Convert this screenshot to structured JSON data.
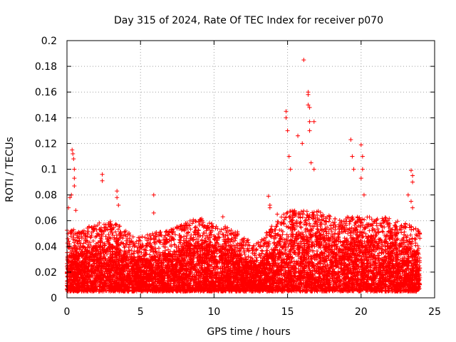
{
  "chart_data": {
    "type": "scatter",
    "title": "Day 315 of 2024, Rate Of TEC Index for receiver p070",
    "xlabel": "GPS time / hours",
    "ylabel": "ROTI / TECUs",
    "xlim": [
      0,
      25
    ],
    "ylim": [
      0,
      0.2
    ],
    "x_ticks": [
      0,
      5,
      10,
      15,
      20,
      25
    ],
    "x_tick_labels": [
      "0",
      "5",
      "10",
      "15",
      "20",
      "25"
    ],
    "y_ticks": [
      0,
      0.02,
      0.04,
      0.06,
      0.08,
      0.1,
      0.12,
      0.14,
      0.16,
      0.18,
      0.2
    ],
    "y_tick_labels": [
      "0",
      "0.02",
      "0.04",
      "0.06",
      "0.08",
      "0.1",
      "0.12",
      "0.14",
      "0.16",
      "0.18",
      "0.2"
    ],
    "grid": true,
    "marker": "plus",
    "series": [
      {
        "name": "ROTI",
        "color": "#ff0000",
        "x_range": [
          0,
          24
        ],
        "dense_band_upper": [
          [
            0,
            0.035
          ],
          [
            1,
            0.035
          ],
          [
            2,
            0.04
          ],
          [
            3,
            0.042
          ],
          [
            4,
            0.035
          ],
          [
            5,
            0.03
          ],
          [
            6,
            0.033
          ],
          [
            7,
            0.035
          ],
          [
            8,
            0.04
          ],
          [
            9,
            0.045
          ],
          [
            10,
            0.04
          ],
          [
            11,
            0.038
          ],
          [
            12,
            0.03
          ],
          [
            13,
            0.025
          ],
          [
            14,
            0.04
          ],
          [
            15,
            0.05
          ],
          [
            16,
            0.05
          ],
          [
            17,
            0.05
          ],
          [
            18,
            0.045
          ],
          [
            19,
            0.045
          ],
          [
            20,
            0.045
          ],
          [
            21,
            0.045
          ],
          [
            22,
            0.045
          ],
          [
            23,
            0.04
          ],
          [
            24,
            0.035
          ]
        ],
        "notable_points": [
          [
            0.1,
            0.07
          ],
          [
            0.2,
            0.078
          ],
          [
            0.3,
            0.08
          ],
          [
            0.35,
            0.115
          ],
          [
            0.4,
            0.112
          ],
          [
            0.45,
            0.108
          ],
          [
            0.5,
            0.1
          ],
          [
            0.5,
            0.093
          ],
          [
            0.5,
            0.087
          ],
          [
            0.6,
            0.068
          ],
          [
            2.4,
            0.096
          ],
          [
            2.4,
            0.091
          ],
          [
            3.4,
            0.083
          ],
          [
            3.4,
            0.078
          ],
          [
            3.5,
            0.072
          ],
          [
            5.9,
            0.08
          ],
          [
            5.9,
            0.066
          ],
          [
            10.6,
            0.063
          ],
          [
            14.9,
            0.145
          ],
          [
            14.9,
            0.14
          ],
          [
            15.0,
            0.13
          ],
          [
            15.1,
            0.11
          ],
          [
            15.2,
            0.1
          ],
          [
            16.1,
            0.185
          ],
          [
            16.4,
            0.16
          ],
          [
            16.4,
            0.158
          ],
          [
            16.4,
            0.15
          ],
          [
            16.5,
            0.148
          ],
          [
            16.5,
            0.137
          ],
          [
            16.5,
            0.13
          ],
          [
            16.8,
            0.137
          ],
          [
            15.7,
            0.126
          ],
          [
            16.0,
            0.12
          ],
          [
            16.6,
            0.105
          ],
          [
            16.8,
            0.1
          ],
          [
            19.3,
            0.123
          ],
          [
            19.4,
            0.11
          ],
          [
            19.5,
            0.1
          ],
          [
            20.0,
            0.119
          ],
          [
            20.1,
            0.11
          ],
          [
            20.1,
            0.1
          ],
          [
            20.0,
            0.093
          ],
          [
            20.2,
            0.08
          ],
          [
            23.4,
            0.099
          ],
          [
            23.5,
            0.095
          ],
          [
            23.5,
            0.09
          ],
          [
            23.2,
            0.08
          ],
          [
            23.4,
            0.075
          ],
          [
            23.5,
            0.07
          ],
          [
            13.7,
            0.079
          ],
          [
            13.8,
            0.072
          ],
          [
            13.8,
            0.07
          ],
          [
            14.3,
            0.065
          ],
          [
            11.8,
            0.03
          ],
          [
            12.5,
            0.028
          ]
        ]
      }
    ]
  }
}
